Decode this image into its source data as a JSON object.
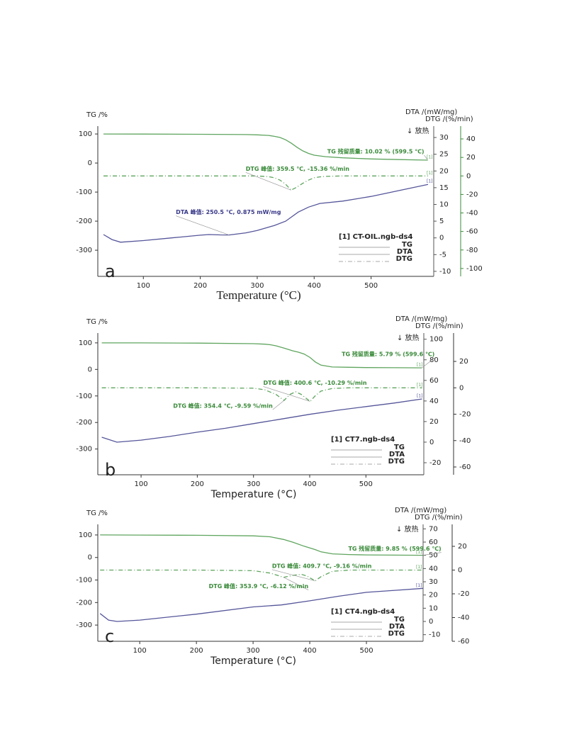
{
  "chart_data": [
    {
      "type": "line",
      "panel": "a",
      "x_label": "Temperature (°C)",
      "y_label": "TG /%",
      "y2_label": "DTA /(mW/mg)",
      "y3_label": "DTG /(%/min)",
      "exo_label": "↓ 放热",
      "xlim": [
        20,
        610
      ],
      "xticks": [
        100,
        200,
        300,
        400,
        500
      ],
      "ylim": [
        -390,
        127
      ],
      "yticks": [
        -300,
        -200,
        -100,
        0,
        100
      ],
      "y2lim": [
        -11.5,
        33.4
      ],
      "y2ticks": [
        -10,
        -5,
        0,
        5,
        10,
        15,
        20,
        25,
        30
      ],
      "y3lim": [
        -108.5,
        53.8
      ],
      "y3ticks": [
        -100,
        -80,
        -60,
        -40,
        -20,
        0,
        20,
        40
      ],
      "y3_axis_color": "#3a8a3a",
      "legend_title": "[1] CT-OIL.ngb-ds4",
      "series_end_label": "[1]",
      "series": [
        {
          "name": "TG",
          "axis": "y",
          "color": "#5fa55f",
          "line_style": "solid",
          "x": [
            30,
            100,
            200,
            280,
            300,
            320,
            330,
            340,
            350,
            360,
            370,
            380,
            390,
            400,
            420,
            450,
            500,
            550,
            599.5
          ],
          "values": [
            100,
            99.8,
            99,
            98,
            97,
            95,
            92,
            88,
            80,
            68,
            54,
            42,
            33,
            27,
            22,
            18,
            14,
            12,
            10.02
          ]
        },
        {
          "name": "DTA",
          "axis": "y2",
          "color": "#55559a",
          "line_style": "solid",
          "x": [
            30,
            45,
            60,
            100,
            150,
            200,
            215,
            235,
            250.5,
            280,
            300,
            330,
            350,
            372,
            390,
            410,
            450,
            500,
            550,
            600
          ],
          "values": [
            1,
            -0.5,
            -1.3,
            -0.8,
            0,
            0.8,
            1,
            0.9,
            0.875,
            1.5,
            2.2,
            3.7,
            5,
            7.7,
            9.2,
            10.3,
            11,
            12.4,
            14.2,
            16
          ]
        },
        {
          "name": "DTG",
          "axis": "y3",
          "color": "#5fa55f",
          "line_style": "dashdot",
          "x": [
            30,
            100,
            200,
            300,
            320,
            330,
            340,
            350,
            359.5,
            370,
            380,
            390,
            400,
            410,
            420,
            450,
            500,
            600
          ],
          "values": [
            0,
            0,
            0,
            0,
            -0.8,
            -2,
            -4.5,
            -9,
            -15.36,
            -12,
            -8,
            -4.5,
            -2,
            -1,
            -0.5,
            0,
            0,
            0
          ]
        }
      ],
      "annotations": [
        {
          "text": "TG 残留质量: 10.02 % (599.5 ℃)",
          "x": 599.5,
          "y": 10.02,
          "axis": "y",
          "color": "#3a8a3a"
        },
        {
          "text": "DTG 峰值: 359.5 ℃, -15.36 %/min",
          "x": 359.5,
          "y": -15.36,
          "axis": "y3",
          "color": "#3a8a3a"
        },
        {
          "text": "DTA 峰值: 250.5 ℃, 0.875 mW/mg",
          "x": 250.5,
          "y": 0.875,
          "axis": "y2",
          "color": "#3a3a8a"
        }
      ]
    },
    {
      "type": "line",
      "panel": "b",
      "x_label": "Temperature (°C)",
      "y_label": "TG /%",
      "y2_label": "DTA /(mW/mg)",
      "y3_label": "DTG /(%/min)",
      "exo_label": "↓ 放热",
      "xlim": [
        23,
        603
      ],
      "xticks": [
        100,
        200,
        300,
        400,
        500
      ],
      "ylim": [
        -397,
        137
      ],
      "yticks": [
        -300,
        -200,
        -100,
        0,
        100
      ],
      "y2lim": [
        -31.7,
        106
      ],
      "y2ticks": [
        -20,
        0,
        20,
        40,
        60,
        80,
        100
      ],
      "y3lim": [
        -65.9,
        41.5
      ],
      "y3ticks": [
        -60,
        -40,
        -20,
        0,
        20
      ],
      "y3_axis_color": "#333333",
      "legend_title": "[1] CT7.ngb-ds4",
      "series_end_label": "[1]",
      "series": [
        {
          "name": "TG",
          "axis": "y",
          "color": "#5fa55f",
          "line_style": "solid",
          "x": [
            30,
            100,
            200,
            300,
            320,
            330,
            340,
            354.4,
            370,
            380,
            390,
            400.6,
            410,
            420,
            440,
            470,
            500,
            550,
            599.6
          ],
          "values": [
            100,
            99.8,
            99,
            97,
            95,
            93,
            89,
            80,
            70,
            65,
            58,
            45,
            28,
            16,
            9,
            8,
            7,
            6.5,
            5.79
          ]
        },
        {
          "name": "DTA",
          "axis": "y2",
          "color": "#55559a",
          "line_style": "solid",
          "x": [
            30,
            57,
            100,
            150,
            200,
            250,
            300,
            350,
            400,
            450,
            500,
            550,
            600
          ],
          "values": [
            4.8,
            0,
            2,
            5.5,
            9.7,
            13.5,
            18,
            22.5,
            27,
            31,
            34.5,
            38,
            42
          ]
        },
        {
          "name": "DTG",
          "axis": "y3",
          "color": "#5fa55f",
          "line_style": "dashdot",
          "x": [
            30,
            100,
            200,
            300,
            320,
            340,
            354.4,
            365,
            375,
            385,
            400.6,
            410,
            420,
            440,
            470,
            600
          ],
          "values": [
            0,
            0,
            0,
            -0.3,
            -1.5,
            -5,
            -9.59,
            -5,
            -3,
            -5,
            -10.29,
            -6,
            -2.5,
            -0.5,
            0,
            0
          ]
        }
      ],
      "annotations": [
        {
          "text": "TG 残留质量: 5.79 % (599.6 ℃)",
          "x": 599.6,
          "y": 5.79,
          "axis": "y",
          "color": "#3a8a3a"
        },
        {
          "text": "DTG 峰值: 400.6 ℃, -10.29 %/min",
          "x": 400.6,
          "y": -10.29,
          "axis": "y3",
          "color": "#3a8a3a"
        },
        {
          "text": "DTG 峰值: 354.4 ℃, -9.59 %/min",
          "x": 354.4,
          "y": -9.59,
          "axis": "y3",
          "color": "#3a8a3a"
        }
      ]
    },
    {
      "type": "line",
      "panel": "c",
      "x_label": "Temperature (°C)",
      "y_label": "TG /%",
      "y2_label": "DTA /(mW/mg)",
      "y3_label": "DTG /(%/min)",
      "exo_label": "↓ 放热",
      "xlim": [
        26,
        600
      ],
      "xticks": [
        100,
        200,
        300,
        400,
        500
      ],
      "ylim": [
        -372,
        147
      ],
      "yticks": [
        -300,
        -200,
        -100,
        0,
        100
      ],
      "y2lim": [
        -15,
        73.4
      ],
      "y2ticks": [
        -10,
        0,
        10,
        20,
        30,
        40,
        50,
        60,
        70
      ],
      "y3lim": [
        -60,
        38.5
      ],
      "y3ticks": [
        -60,
        -40,
        -20,
        0,
        20
      ],
      "y3_axis_color": "#333333",
      "legend_title": "[1] CT4.ngb-ds4",
      "series_end_label": "[1]",
      "series": [
        {
          "name": "TG",
          "axis": "y",
          "color": "#5fa55f",
          "line_style": "solid",
          "x": [
            30,
            100,
            200,
            300,
            330,
            353.9,
            370,
            390,
            409.7,
            420,
            440,
            470,
            500,
            550,
            599.6
          ],
          "values": [
            100,
            99.5,
            98.5,
            96,
            92,
            80,
            68,
            50,
            35,
            25,
            16,
            13,
            11.5,
            10.5,
            9.85
          ]
        },
        {
          "name": "DTA",
          "axis": "y2",
          "color": "#55559a",
          "line_style": "solid",
          "x": [
            30,
            45,
            60,
            100,
            200,
            300,
            350,
            400,
            450,
            500,
            550,
            600
          ],
          "values": [
            6,
            1,
            0,
            1,
            5.5,
            11,
            12.5,
            15.6,
            19,
            22,
            23.5,
            25
          ]
        },
        {
          "name": "DTG",
          "axis": "y3",
          "color": "#5fa55f",
          "line_style": "dashdot",
          "x": [
            30,
            100,
            200,
            300,
            330,
            353.9,
            370,
            385,
            395,
            409.7,
            420,
            440,
            470,
            600
          ],
          "values": [
            0,
            0,
            0,
            -0.5,
            -2.5,
            -6.12,
            -4.5,
            -3.5,
            -5,
            -9.16,
            -5.5,
            -1,
            0,
            0
          ]
        }
      ],
      "annotations": [
        {
          "text": "TG 残留质量: 9.85 % (599.6 ℃)",
          "x": 599.6,
          "y": 9.85,
          "axis": "y",
          "color": "#3a8a3a"
        },
        {
          "text": "DTG 峰值: 409.7 ℃, -9.16 %/min",
          "x": 409.7,
          "y": -9.16,
          "axis": "y3",
          "color": "#3a8a3a"
        },
        {
          "text": "DTG 峰值: 353.9 ℃, -6.12 %/min",
          "x": 353.9,
          "y": -6.12,
          "axis": "y3",
          "color": "#3a8a3a"
        }
      ]
    }
  ]
}
